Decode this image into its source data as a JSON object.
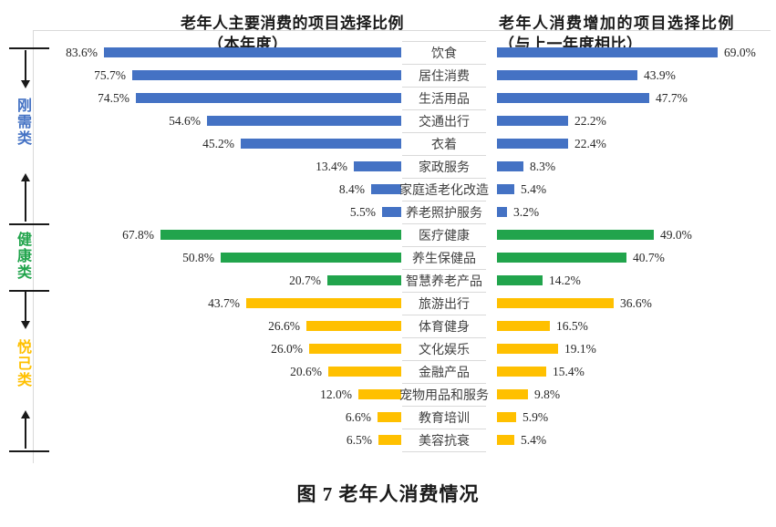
{
  "titles": {
    "left_line1": "老年人主要消费的项目选择比例",
    "left_line2": "（本年度）",
    "right_line1": "老年人消费增加的项目选择比例",
    "right_line2": "（与上一年度相比）"
  },
  "caption": "图 7 老年人消费情况",
  "colors": {
    "blue": "#4472C4",
    "green": "#21A44C",
    "yellow": "#FFC000",
    "divider": "#D9D9D9",
    "tick": "#1A1A1A"
  },
  "groups": [
    {
      "label": "刚需类",
      "color": "#4472C4",
      "start_row": 0,
      "end_row": 7
    },
    {
      "label": "健康类",
      "color": "#21A44C",
      "start_row": 8,
      "end_row": 10
    },
    {
      "label": "悦己类",
      "color": "#FFC000",
      "start_row": 11,
      "end_row": 17
    }
  ],
  "chart_data": {
    "type": "bar",
    "layout": "mirrored-horizontal",
    "unit": "%",
    "categories": [
      "饮食",
      "居住消费",
      "生活用品",
      "交通出行",
      "衣着",
      "家政服务",
      "家庭适老化改造",
      "养老照护服务",
      "医疗健康",
      "养生保健品",
      "智慧养老产品",
      "旅游出行",
      "体育健身",
      "文化娱乐",
      "金融产品",
      "宠物用品和服务",
      "教育培训",
      "美容抗衰"
    ],
    "category_groups": [
      "刚需类",
      "刚需类",
      "刚需类",
      "刚需类",
      "刚需类",
      "刚需类",
      "刚需类",
      "刚需类",
      "健康类",
      "健康类",
      "健康类",
      "悦己类",
      "悦己类",
      "悦己类",
      "悦己类",
      "悦己类",
      "悦己类",
      "悦己类"
    ],
    "bar_colors_by_group": {
      "刚需类": "#4472C4",
      "健康类": "#21A44C",
      "悦己类": "#FFC000"
    },
    "series": [
      {
        "name": "老年人主要消费的项目选择比例（本年度）",
        "side": "left",
        "values": [
          83.6,
          75.7,
          74.5,
          54.6,
          45.2,
          13.4,
          8.4,
          5.5,
          67.8,
          50.8,
          20.7,
          43.7,
          26.6,
          26.0,
          20.6,
          12.0,
          6.6,
          6.5
        ]
      },
      {
        "name": "老年人消费增加的项目选择比例（与上一年度相比）",
        "side": "right",
        "values": [
          69.0,
          43.9,
          47.7,
          22.2,
          22.4,
          8.3,
          5.4,
          3.2,
          49.0,
          40.7,
          14.2,
          36.6,
          16.5,
          19.1,
          15.4,
          9.8,
          5.9,
          5.4
        ]
      }
    ]
  }
}
